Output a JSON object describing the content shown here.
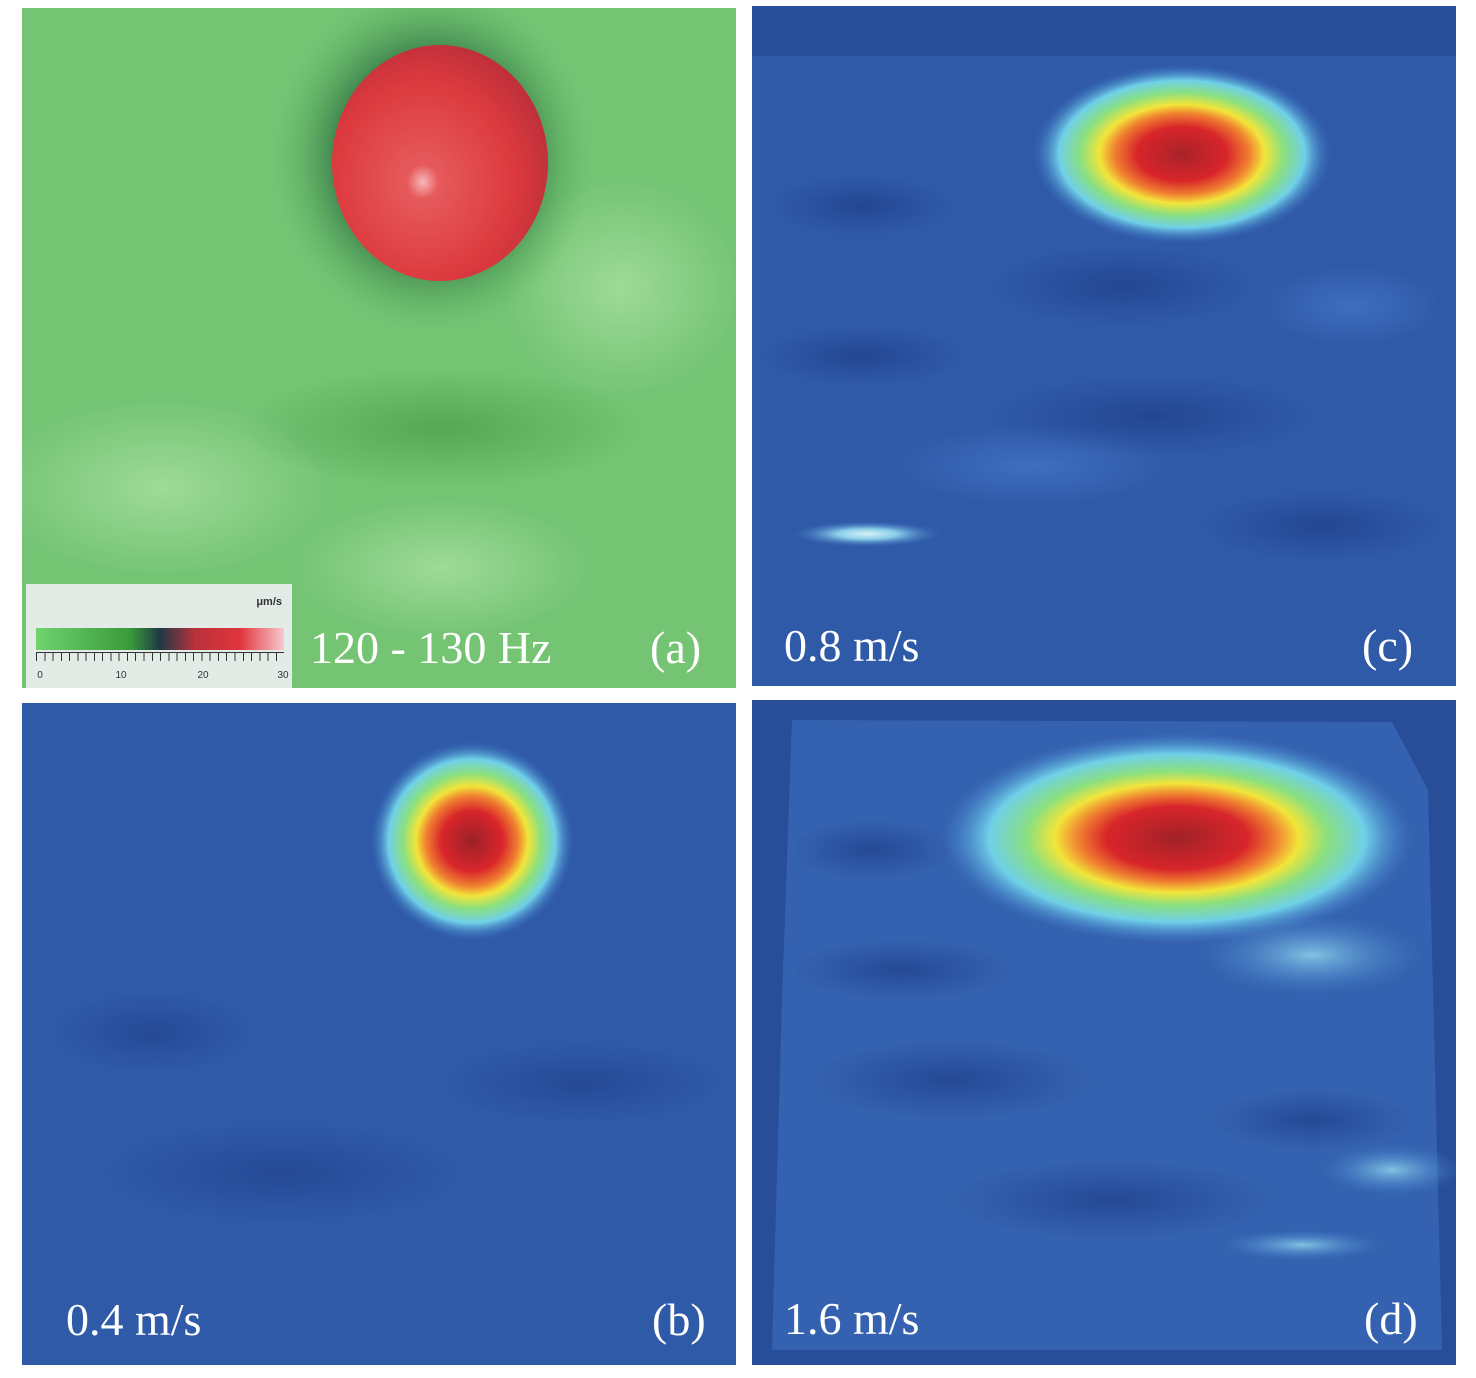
{
  "panels": {
    "a": {
      "frequency_label": "120 - 130 Hz",
      "tag": "(a)",
      "colorbar": {
        "unit": "μm/s",
        "ticks": [
          "0",
          "10",
          "20",
          "30"
        ]
      },
      "colors": {
        "background": "#74c474",
        "hotspot": "#e03a3c",
        "halo": "#1e5a3c"
      }
    },
    "b": {
      "speed_label": "0.4 m/s",
      "tag": "(b)"
    },
    "c": {
      "speed_label": "0.8 m/s",
      "tag": "(c)"
    },
    "d": {
      "speed_label": "1.6 m/s",
      "tag": "(d)"
    }
  },
  "colors": {
    "blue_background": "#2f5aa8",
    "jet_red": "#d8232a",
    "jet_yellow": "#f2e53a",
    "jet_cyan": "#6fd0e8"
  }
}
